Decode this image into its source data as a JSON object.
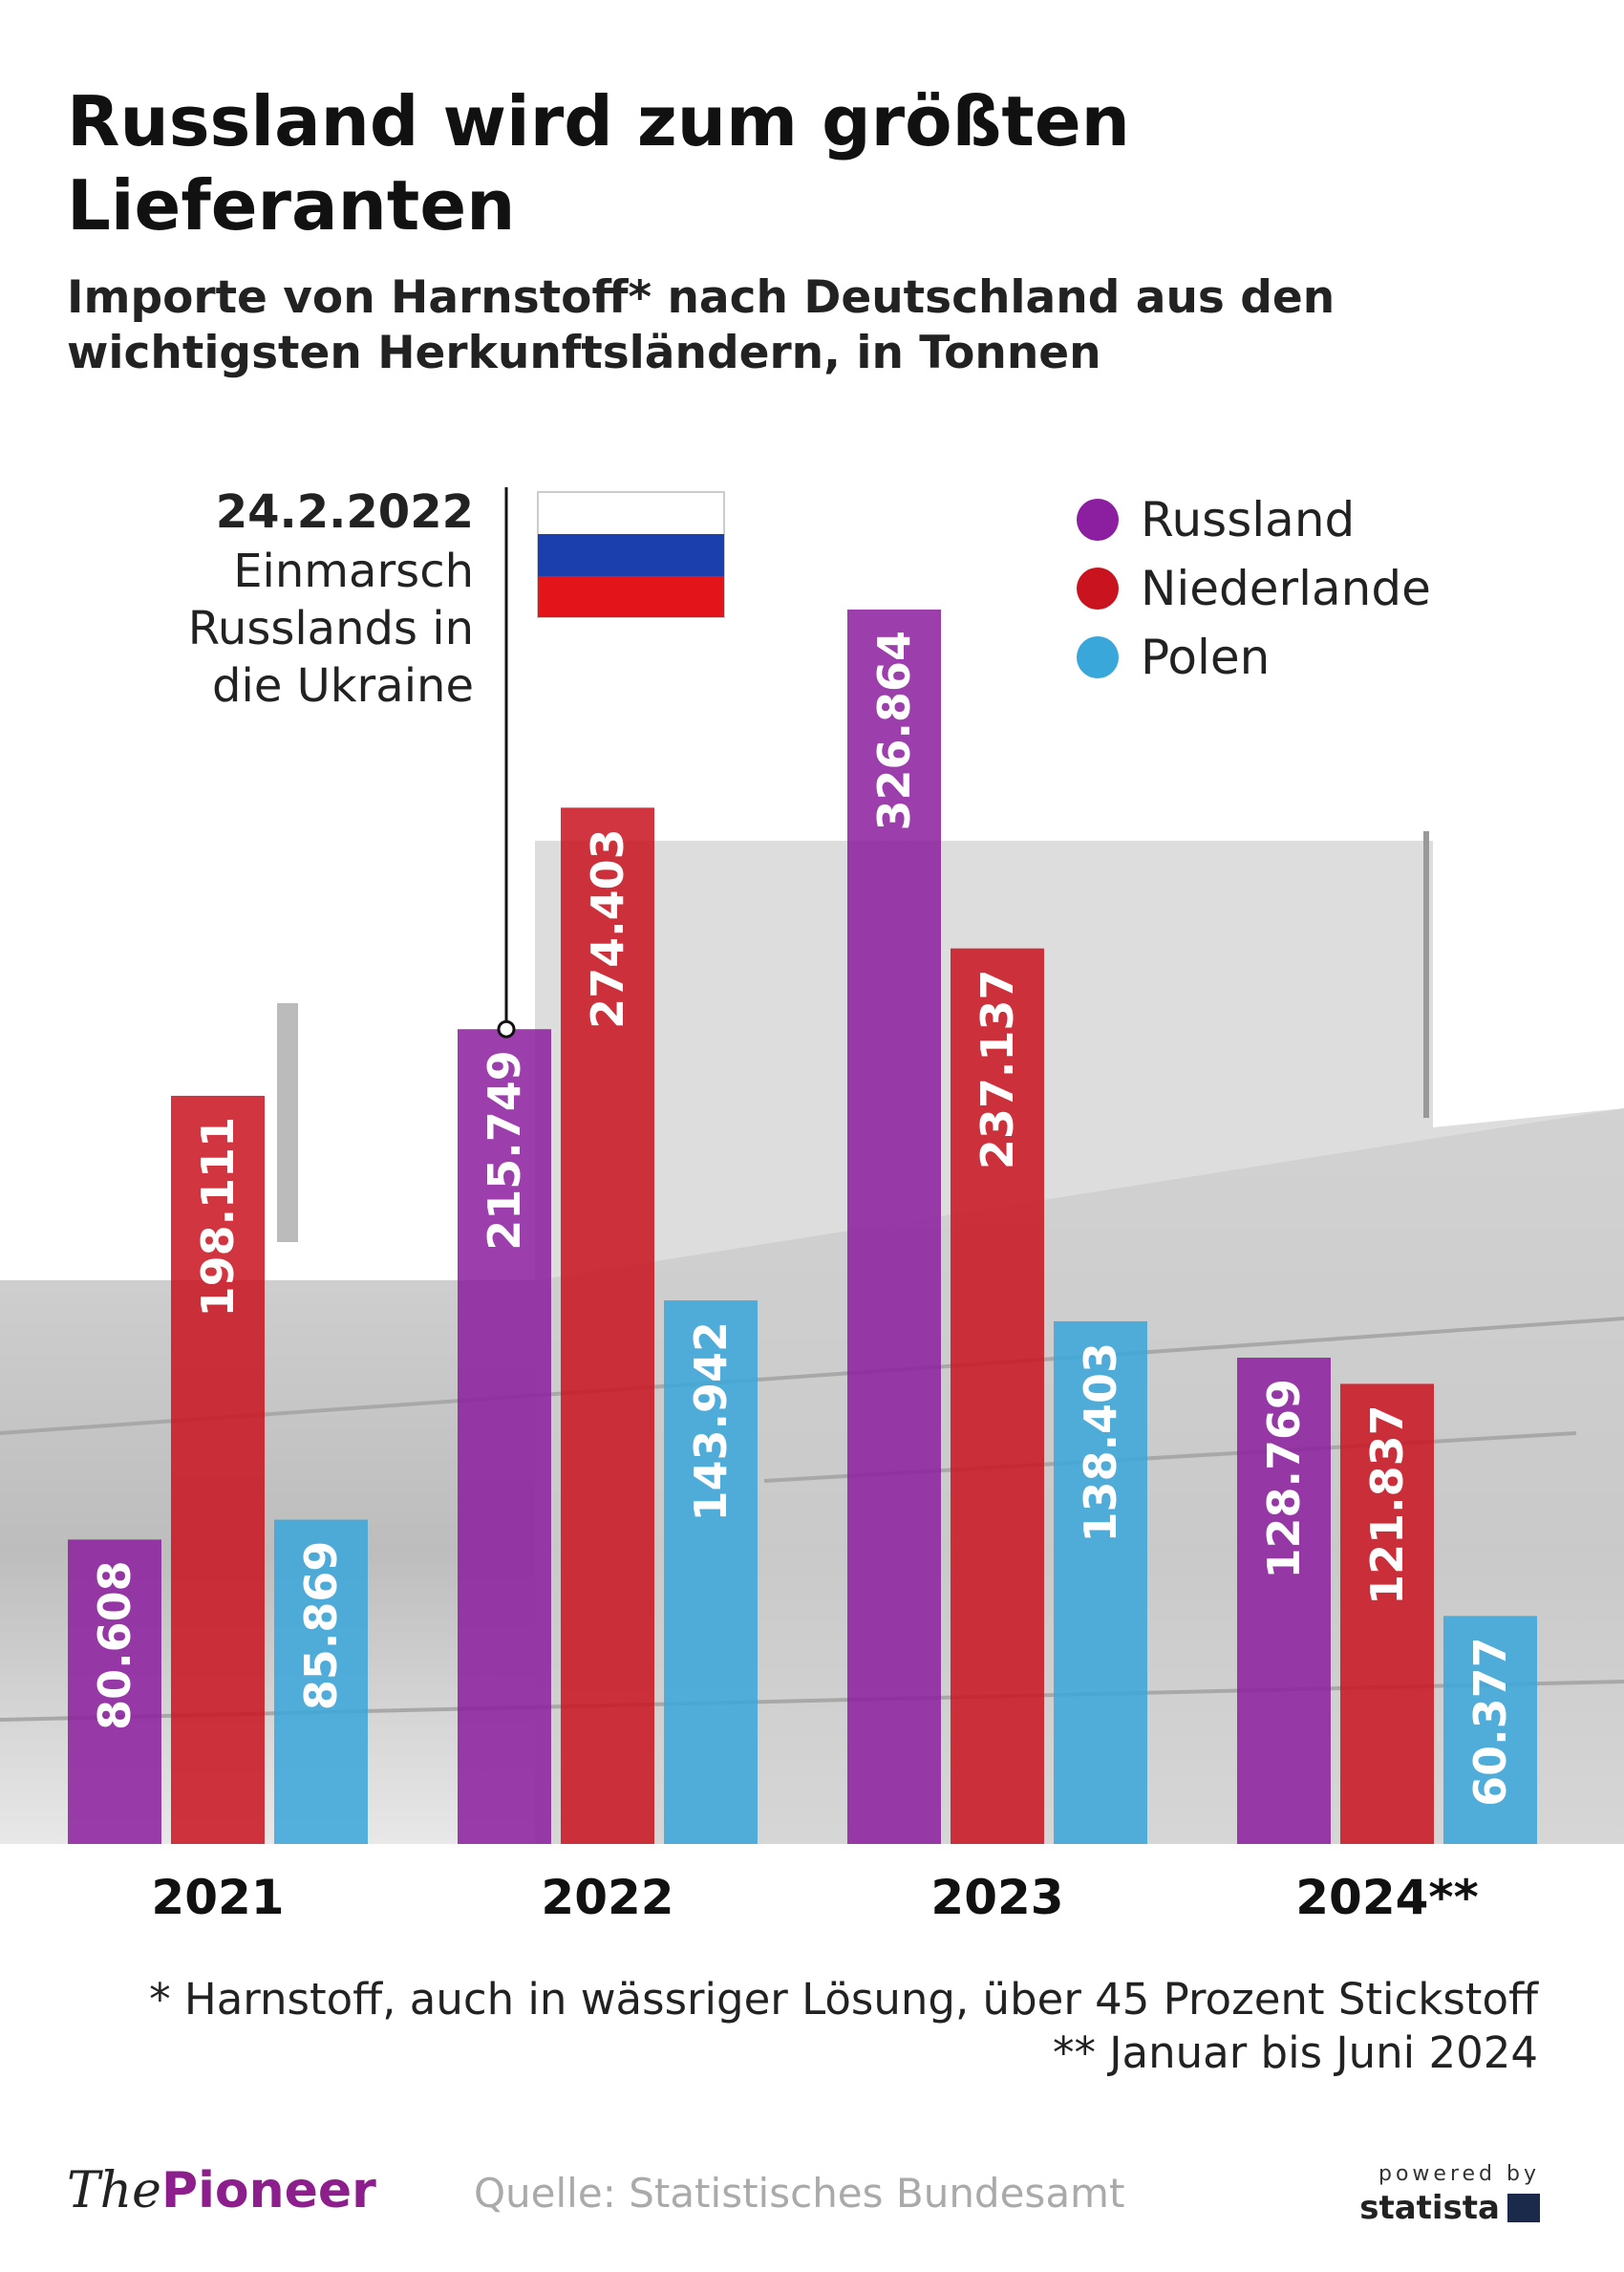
{
  "chart_data": {
    "type": "bar",
    "title_lines": [
      "Russland wird zum größten",
      "Lieferanten"
    ],
    "subtitle_lines": [
      "Importe von Harnstoff* nach Deutschland aus den",
      "wichtigsten Herkunftsländern, in Tonnen"
    ],
    "categories": [
      "2021",
      "2022",
      "2023",
      "2024**"
    ],
    "series": [
      {
        "name": "Russland",
        "color": "#8c1fa0",
        "values": [
          80608,
          215749,
          326864,
          128769
        ],
        "value_labels": [
          "80.608",
          "215.749",
          "326.864",
          "128.769"
        ]
      },
      {
        "name": "Niederlande",
        "color": "#c9141f",
        "values": [
          198111,
          274403,
          237137,
          121837
        ],
        "value_labels": [
          "198.111",
          "274.403",
          "237.137",
          "121.837"
        ]
      },
      {
        "name": "Polen",
        "color": "#3aa7da",
        "values": [
          85869,
          143942,
          138403,
          60377
        ],
        "value_labels": [
          "85.869",
          "143.942",
          "138.403",
          "60.377"
        ]
      }
    ],
    "legend": "top-right",
    "annotation": {
      "date": "24.2.2022",
      "lines": [
        "Einmarsch",
        "Russlands in",
        "die Ukraine"
      ]
    }
  },
  "footnotes": [
    "* Harnstoff, auch in wässriger Lösung, über 45 Prozent Stickstoff",
    "** Januar bis Juni 2024"
  ],
  "source": "Quelle: Statistisches Bundesamt",
  "branding": {
    "logo_first": "The",
    "logo_second": "Pioneer",
    "powered": "powered by",
    "statista": "statista"
  }
}
